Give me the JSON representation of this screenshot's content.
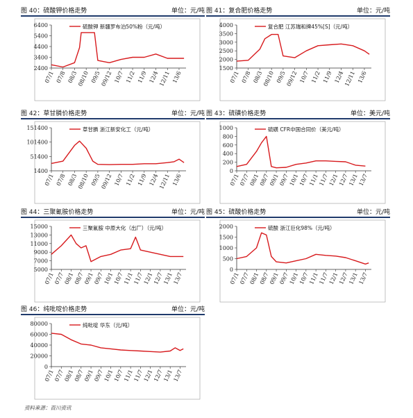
{
  "panels": [
    {
      "title": "图 40：硫酸钾价格走势",
      "unit": "单位：元/吨",
      "legend": "硫酸钾 新疆罗布泊50%粉（元/吨）",
      "yticks": [
        "6400",
        "5400",
        "4400",
        "3400",
        "2400"
      ],
      "xticks": [
        "07/1",
        "07/8",
        "08/3",
        "08/10",
        "09/5",
        "09/12",
        "10/7",
        "11/2",
        "11/9",
        "12/4",
        "12/11",
        "13/6"
      ]
    },
    {
      "title": "图 41：复合肥价格走势",
      "unit": "单位：元/吨",
      "legend": "复合肥 江苏瑞和牌45%[S]（元/吨）",
      "yticks": [
        "4000",
        "3500",
        "3000",
        "2500",
        "2000",
        "1500"
      ],
      "xticks": [
        "07/1",
        "07/8",
        "08/3",
        "08/10",
        "09/5",
        "09/12",
        "10/7",
        "11/2",
        "11/9",
        "12/4",
        "12/11",
        "13/6"
      ]
    },
    {
      "title": "图 42：草甘膦价格走势",
      "unit": "单位：元/吨",
      "legend": "草甘膦 浙江新安化工（元/吨）",
      "yticks": [
        "151400",
        "101400",
        "51400",
        "1400"
      ],
      "xticks": [
        "07/1",
        "07/8",
        "08/3",
        "08/10",
        "09/5",
        "09/12",
        "10/7",
        "11/2",
        "11/9",
        "12/4",
        "12/11",
        "13/6"
      ]
    },
    {
      "title": "图 43：硫磺价格走势",
      "unit": "单位：美元/吨",
      "legend": "硫磺 CFR中国合同价（美元/吨）",
      "yticks": [
        "1000",
        "800",
        "600",
        "400",
        "200",
        "0"
      ],
      "xticks": [
        "07/1",
        "07/7",
        "08/1",
        "08/7",
        "09/1",
        "09/7",
        "10/1",
        "10/7",
        "11/1",
        "11/7",
        "12/1",
        "12/7",
        "13/1",
        "13/7"
      ]
    },
    {
      "title": "图 44：三聚氰胺价格走势",
      "unit": "单位：元/吨",
      "legend": "三聚氰胺 中原大化（出厂）（元/吨）",
      "yticks": [
        "15000",
        "13000",
        "11000",
        "9000",
        "7000",
        "5000"
      ],
      "xticks": [
        "07/1",
        "07/7",
        "08/1",
        "08/7",
        "09/1",
        "09/7",
        "10/1",
        "10/7",
        "11/1",
        "11/7",
        "12/1",
        "12/7",
        "13/1",
        "13/7"
      ]
    },
    {
      "title": "图 45：硫酸价格走势",
      "unit": "单位：元/吨",
      "legend": "硫酸 浙江巨化98%（元/吨）",
      "yticks": [
        "2000",
        "1500",
        "1000",
        "500",
        "0"
      ],
      "xticks": [
        "07/1",
        "07/7",
        "08/1",
        "08/7",
        "09/1",
        "09/7",
        "10/1",
        "10/7",
        "11/1",
        "11/7",
        "12/1",
        "12/7",
        "13/1",
        "13/7"
      ]
    },
    {
      "title": "图 46：纯吡啶价格走势",
      "unit": "单位：元/吨",
      "legend": "纯吡啶 华东（元/吨）",
      "yticks": [
        "80000",
        "60000",
        "40000",
        "20000",
        "0"
      ],
      "xticks": [
        "07/1",
        "07/7",
        "08/1",
        "08/7",
        "09/1",
        "09/7",
        "10/1",
        "10/7",
        "11/1",
        "11/7",
        "12/1",
        "12/7",
        "13/1",
        "13/7"
      ]
    }
  ],
  "source": "资料来源：百川资讯",
  "colors": {
    "line": "#d7191c",
    "rule": "#1f3a6b",
    "axis": "#333333"
  },
  "chart_data": [
    {
      "type": "line",
      "title": "图 40：硫酸钾价格走势",
      "ylabel": "单位：元/吨",
      "ylim": [
        2400,
        6400
      ],
      "series": [
        {
          "name": "硫酸钾 新疆罗布泊50%粉（元/吨）",
          "x": [
            "07/1",
            "07/8",
            "08/3",
            "08/6",
            "08/7",
            "08/10",
            "09/3",
            "09/5",
            "09/12",
            "10/7",
            "11/2",
            "11/9",
            "12/4",
            "12/11",
            "13/6",
            "13/9"
          ],
          "values": [
            2700,
            2500,
            2900,
            4300,
            5700,
            5700,
            5700,
            3100,
            2900,
            3200,
            3400,
            3400,
            3700,
            3300,
            3300,
            3300
          ]
        }
      ]
    },
    {
      "type": "line",
      "title": "图 41：复合肥价格走势",
      "ylabel": "单位：元/吨",
      "ylim": [
        1500,
        4000
      ],
      "series": [
        {
          "name": "复合肥 江苏瑞和牌45%[S]（元/吨）",
          "x": [
            "07/1",
            "07/8",
            "08/3",
            "08/6",
            "08/10",
            "09/2",
            "09/5",
            "09/12",
            "10/7",
            "11/2",
            "11/9",
            "12/4",
            "12/11",
            "13/6",
            "13/9"
          ],
          "values": [
            1900,
            1950,
            2600,
            3200,
            3450,
            3450,
            2200,
            2100,
            2500,
            2800,
            2850,
            2900,
            2800,
            2500,
            2300
          ]
        }
      ]
    },
    {
      "type": "line",
      "title": "图 42：草甘膦价格走势",
      "ylabel": "单位：元/吨",
      "ylim": [
        1400,
        151400
      ],
      "series": [
        {
          "name": "草甘膦 浙江新安化工（元/吨）",
          "x": [
            "07/1",
            "07/8",
            "08/3",
            "08/6",
            "08/10",
            "09/2",
            "09/5",
            "09/12",
            "10/7",
            "11/2",
            "11/9",
            "12/4",
            "12/11",
            "13/3",
            "13/6",
            "13/9"
          ],
          "values": [
            27000,
            35000,
            90000,
            105000,
            80000,
            35000,
            24000,
            23000,
            24000,
            24000,
            26000,
            26000,
            30000,
            33000,
            42000,
            30000
          ]
        }
      ]
    },
    {
      "type": "line",
      "title": "图 43：硫磺价格走势",
      "ylabel": "单位：美元/吨",
      "ylim": [
        0,
        1000
      ],
      "series": [
        {
          "name": "硫磺 CFR中国合同价（美元/吨）",
          "x": [
            "07/1",
            "07/7",
            "08/1",
            "08/4",
            "08/7",
            "08/10",
            "09/1",
            "09/7",
            "10/1",
            "10/7",
            "11/1",
            "11/7",
            "12/1",
            "12/7",
            "13/1",
            "13/7"
          ],
          "values": [
            100,
            150,
            450,
            650,
            800,
            100,
            70,
            80,
            150,
            180,
            230,
            230,
            220,
            210,
            130,
            110
          ]
        }
      ]
    },
    {
      "type": "line",
      "title": "图 44：三聚氰胺价格走势",
      "ylabel": "单位：元/吨",
      "ylim": [
        5000,
        15000
      ],
      "series": [
        {
          "name": "三聚氰胺 中原大化（出厂）（元/吨）",
          "x": [
            "07/1",
            "07/7",
            "08/1",
            "08/4",
            "08/7",
            "08/10",
            "09/1",
            "09/7",
            "10/1",
            "10/7",
            "11/1",
            "11/4",
            "11/7",
            "12/1",
            "12/7",
            "13/1",
            "13/7",
            "13/9"
          ],
          "values": [
            8500,
            10500,
            13000,
            11000,
            10000,
            10500,
            6800,
            8000,
            8500,
            9500,
            9800,
            12500,
            9500,
            9000,
            8500,
            8000,
            8000,
            8000
          ]
        }
      ]
    },
    {
      "type": "line",
      "title": "图 45：硫酸价格走势",
      "ylabel": "单位：元/吨",
      "ylim": [
        0,
        2000
      ],
      "series": [
        {
          "name": "硫酸 浙江巨化98%（元/吨）",
          "x": [
            "07/1",
            "07/7",
            "08/1",
            "08/4",
            "08/7",
            "08/10",
            "09/1",
            "09/7",
            "10/1",
            "10/7",
            "11/1",
            "11/7",
            "12/1",
            "12/7",
            "13/1",
            "13/7",
            "13/9"
          ],
          "values": [
            500,
            600,
            1000,
            1700,
            1600,
            600,
            350,
            300,
            400,
            500,
            700,
            650,
            620,
            550,
            400,
            250,
            300
          ]
        }
      ]
    },
    {
      "type": "line",
      "title": "图 46：纯吡啶价格走势",
      "ylabel": "单位：元/吨",
      "ylim": [
        0,
        80000
      ],
      "series": [
        {
          "name": "纯吡啶 华东（元/吨）",
          "x": [
            "07/1",
            "07/7",
            "08/1",
            "08/7",
            "09/1",
            "09/7",
            "10/1",
            "10/7",
            "11/1",
            "11/7",
            "12/1",
            "12/7",
            "13/1",
            "13/4",
            "13/7",
            "13/9"
          ],
          "values": [
            62000,
            60000,
            50000,
            42000,
            40000,
            35000,
            33000,
            31000,
            30000,
            29000,
            28000,
            27000,
            29000,
            35000,
            30000,
            33000
          ]
        }
      ]
    }
  ]
}
